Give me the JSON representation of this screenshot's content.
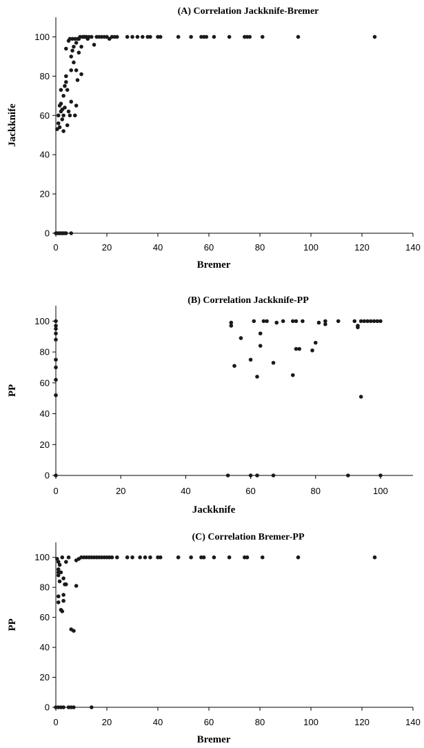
{
  "colors": {
    "point": "#1a1a1a",
    "axis": "#000000"
  },
  "chart_data": [
    {
      "type": "scatter",
      "title": "(A) Correlation Jackknife-Bremer",
      "xlabel": "Bremer",
      "ylabel": "Jackknife",
      "xlim": [
        0,
        140
      ],
      "ylim": [
        0,
        110
      ],
      "xticks": [
        0,
        20,
        40,
        60,
        80,
        100,
        120,
        140
      ],
      "yticks": [
        0,
        20,
        40,
        60,
        80,
        100
      ],
      "grid": false,
      "points": [
        [
          0,
          0
        ],
        [
          0.5,
          0
        ],
        [
          1,
          0
        ],
        [
          1.5,
          0
        ],
        [
          2,
          0
        ],
        [
          2.5,
          0
        ],
        [
          3,
          0
        ],
        [
          3.5,
          0
        ],
        [
          4,
          0
        ],
        [
          6,
          0
        ],
        [
          0.5,
          53
        ],
        [
          1,
          56
        ],
        [
          1,
          60
        ],
        [
          1.5,
          54
        ],
        [
          1.5,
          65
        ],
        [
          2,
          62
        ],
        [
          2,
          66
        ],
        [
          2,
          73
        ],
        [
          2.5,
          58
        ],
        [
          2.5,
          63
        ],
        [
          3,
          52
        ],
        [
          3,
          60
        ],
        [
          3,
          70
        ],
        [
          3.5,
          64
        ],
        [
          3.5,
          75
        ],
        [
          4,
          77
        ],
        [
          4,
          80
        ],
        [
          4,
          94
        ],
        [
          4.5,
          55
        ],
        [
          4.5,
          73
        ],
        [
          5,
          98
        ],
        [
          5,
          62
        ],
        [
          5.5,
          60
        ],
        [
          6,
          67
        ],
        [
          6,
          83
        ],
        [
          6,
          90
        ],
        [
          6.5,
          93
        ],
        [
          7,
          87
        ],
        [
          7,
          95
        ],
        [
          7.5,
          60
        ],
        [
          8,
          65
        ],
        [
          8,
          83
        ],
        [
          8,
          97
        ],
        [
          8.5,
          78
        ],
        [
          9,
          92
        ],
        [
          9,
          99
        ],
        [
          10,
          81
        ],
        [
          10,
          95
        ],
        [
          11,
          100
        ],
        [
          12,
          100
        ],
        [
          13,
          100
        ],
        [
          14,
          100
        ],
        [
          15,
          96
        ],
        [
          16,
          100
        ],
        [
          17,
          100
        ],
        [
          18,
          100
        ],
        [
          19,
          100
        ],
        [
          20,
          100
        ],
        [
          21,
          99
        ],
        [
          22,
          100
        ],
        [
          23,
          100
        ],
        [
          24,
          100
        ],
        [
          5.5,
          99
        ],
        [
          6.5,
          99
        ],
        [
          7.5,
          99
        ],
        [
          8.5,
          99
        ],
        [
          9.5,
          100
        ],
        [
          10.5,
          100
        ],
        [
          11.5,
          100
        ],
        [
          12.5,
          99
        ],
        [
          28,
          100
        ],
        [
          30,
          100
        ],
        [
          32,
          100
        ],
        [
          34,
          100
        ],
        [
          36,
          100
        ],
        [
          37,
          100
        ],
        [
          40,
          100
        ],
        [
          41,
          100
        ],
        [
          48,
          100
        ],
        [
          53,
          100
        ],
        [
          57,
          100
        ],
        [
          58,
          100
        ],
        [
          59,
          100
        ],
        [
          62,
          100
        ],
        [
          68,
          100
        ],
        [
          74,
          100
        ],
        [
          75,
          100
        ],
        [
          76,
          100
        ],
        [
          81,
          100
        ],
        [
          95,
          100
        ],
        [
          125,
          100
        ]
      ]
    },
    {
      "type": "scatter",
      "title": "(B) Correlation Jackknife-PP",
      "xlabel": "Jackknife",
      "ylabel": "PP",
      "xlim": [
        0,
        110
      ],
      "ylim": [
        0,
        110
      ],
      "xticks": [
        0,
        20,
        40,
        60,
        80,
        100
      ],
      "yticks": [
        0,
        20,
        40,
        60,
        80,
        100
      ],
      "grid": false,
      "points": [
        [
          0,
          0
        ],
        [
          0,
          52
        ],
        [
          0,
          62
        ],
        [
          0,
          70
        ],
        [
          0,
          75
        ],
        [
          0,
          88
        ],
        [
          0,
          92
        ],
        [
          0,
          95
        ],
        [
          0,
          97
        ],
        [
          0,
          100
        ],
        [
          53,
          0
        ],
        [
          60,
          0
        ],
        [
          62,
          0
        ],
        [
          67,
          0
        ],
        [
          90,
          0
        ],
        [
          100,
          0
        ],
        [
          54,
          99
        ],
        [
          54,
          97
        ],
        [
          55,
          71
        ],
        [
          57,
          89
        ],
        [
          60,
          75
        ],
        [
          61,
          100
        ],
        [
          62,
          64
        ],
        [
          63,
          84
        ],
        [
          63,
          92
        ],
        [
          64,
          100
        ],
        [
          65,
          100
        ],
        [
          67,
          73
        ],
        [
          68,
          99
        ],
        [
          70,
          100
        ],
        [
          73,
          65
        ],
        [
          73,
          100
        ],
        [
          74,
          100
        ],
        [
          74,
          82
        ],
        [
          75,
          82
        ],
        [
          76,
          100
        ],
        [
          79,
          81
        ],
        [
          80,
          86
        ],
        [
          81,
          99
        ],
        [
          83,
          100
        ],
        [
          83,
          98
        ],
        [
          87,
          100
        ],
        [
          92,
          100
        ],
        [
          93,
          97
        ],
        [
          93,
          96
        ],
        [
          94,
          100
        ],
        [
          94,
          51
        ],
        [
          95,
          100
        ],
        [
          96,
          100
        ],
        [
          97,
          100
        ],
        [
          98,
          100
        ],
        [
          99,
          100
        ],
        [
          100,
          100
        ]
      ]
    },
    {
      "type": "scatter",
      "title": "(C) Correlation Bremer-PP",
      "xlabel": "Bremer",
      "ylabel": "PP",
      "xlim": [
        0,
        140
      ],
      "ylim": [
        0,
        110
      ],
      "xticks": [
        0,
        20,
        40,
        60,
        80,
        100,
        120,
        140
      ],
      "yticks": [
        0,
        20,
        40,
        60,
        80,
        100
      ],
      "grid": false,
      "points": [
        [
          0,
          0
        ],
        [
          1,
          0
        ],
        [
          2,
          0
        ],
        [
          3,
          0
        ],
        [
          5,
          0
        ],
        [
          6,
          0
        ],
        [
          7,
          0
        ],
        [
          14,
          0
        ],
        [
          0.5,
          99
        ],
        [
          1,
          97
        ],
        [
          1,
          92
        ],
        [
          1,
          90
        ],
        [
          1,
          88
        ],
        [
          1,
          74
        ],
        [
          1,
          70
        ],
        [
          1.5,
          95
        ],
        [
          1.5,
          84
        ],
        [
          2,
          65
        ],
        [
          2,
          90
        ],
        [
          2.5,
          100
        ],
        [
          2.5,
          64
        ],
        [
          3,
          71
        ],
        [
          3,
          75
        ],
        [
          3,
          86
        ],
        [
          3.5,
          82
        ],
        [
          4,
          82
        ],
        [
          4,
          97
        ],
        [
          5,
          100
        ],
        [
          6,
          52
        ],
        [
          7,
          51
        ],
        [
          8,
          81
        ],
        [
          8,
          98
        ],
        [
          9,
          99
        ],
        [
          10,
          100
        ],
        [
          11,
          100
        ],
        [
          12,
          100
        ],
        [
          13,
          100
        ],
        [
          14,
          100
        ],
        [
          15,
          100
        ],
        [
          16,
          100
        ],
        [
          17,
          100
        ],
        [
          18,
          100
        ],
        [
          19,
          100
        ],
        [
          20,
          100
        ],
        [
          21,
          100
        ],
        [
          22,
          100
        ],
        [
          24,
          100
        ],
        [
          28,
          100
        ],
        [
          30,
          100
        ],
        [
          33,
          100
        ],
        [
          35,
          100
        ],
        [
          37,
          100
        ],
        [
          40,
          100
        ],
        [
          41,
          100
        ],
        [
          48,
          100
        ],
        [
          53,
          100
        ],
        [
          57,
          100
        ],
        [
          58,
          100
        ],
        [
          62,
          100
        ],
        [
          68,
          100
        ],
        [
          74,
          100
        ],
        [
          75,
          100
        ],
        [
          81,
          100
        ],
        [
          95,
          100
        ],
        [
          125,
          100
        ]
      ]
    }
  ]
}
